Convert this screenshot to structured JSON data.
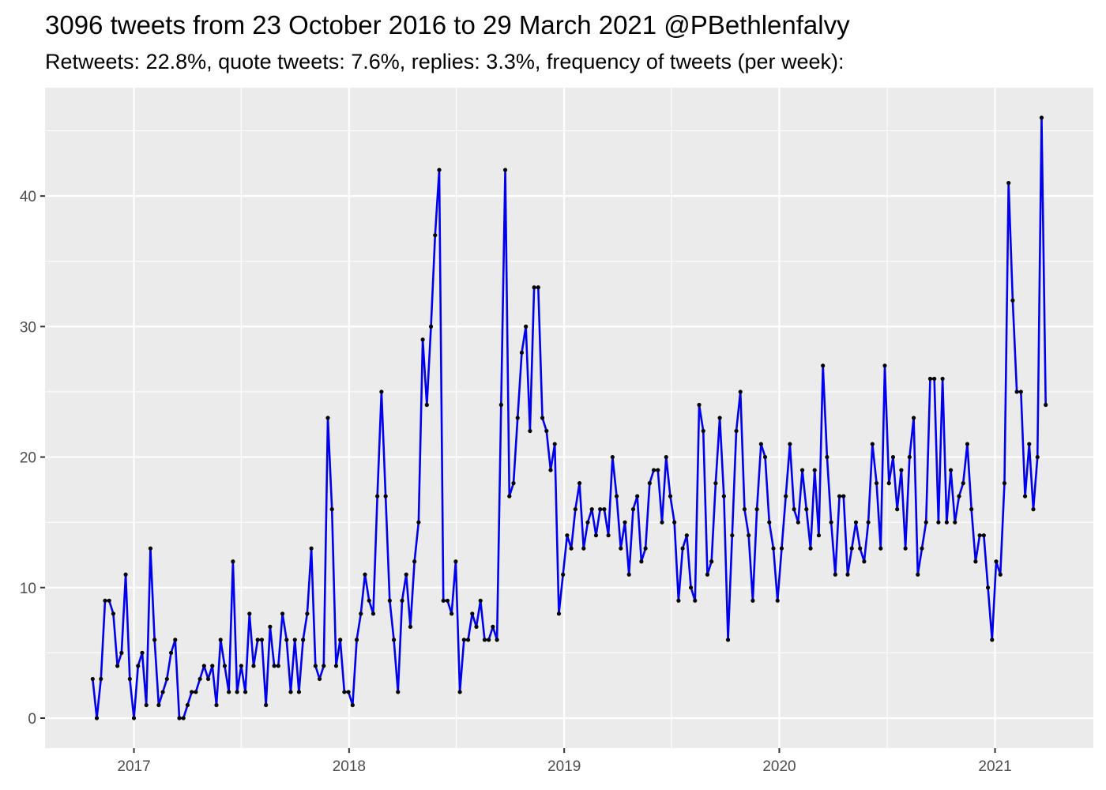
{
  "title": "3096 tweets from 23 October 2016 to 29 March 2021 @PBethlenfalvy",
  "subtitle": "Retweets: 22.8%, quote tweets: 7.6%, replies: 3.3%, frequency of tweets (per week):",
  "chart_data": {
    "type": "line",
    "title": "3096 tweets from 23 October 2016 to 29 March 2021 @PBethlenfalvy",
    "subtitle": "Retweets: 22.8%, quote tweets: 7.6%, replies: 3.3%, frequency of tweets (per week):",
    "xlabel": "",
    "ylabel": "",
    "x_start": "2016-10-23",
    "x_end": "2021-03-29",
    "x_interval": "week",
    "x_ticks": [
      "2017",
      "2018",
      "2019",
      "2020",
      "2021"
    ],
    "y_ticks": [
      0,
      10,
      20,
      30,
      40
    ],
    "ylim": [
      -2.3,
      48.3
    ],
    "grid": true,
    "legend": "none",
    "line_color": "#0000ee",
    "point_color": "#000000",
    "panel_background": "#ebebeb",
    "gridline_color": "#ffffff",
    "series": [
      {
        "values": [
          3,
          0,
          3,
          9,
          9,
          8,
          4,
          5,
          11,
          3,
          0,
          4,
          5,
          1,
          13,
          6,
          1,
          2,
          3,
          5,
          6,
          0,
          0,
          1,
          2,
          2,
          3,
          4,
          3,
          4,
          1,
          6,
          4,
          2,
          12,
          2,
          4,
          2,
          8,
          4,
          6,
          6,
          1,
          7,
          4,
          4,
          8,
          6,
          2,
          6,
          2,
          6,
          8,
          13,
          4,
          3,
          4,
          23,
          16,
          4,
          6,
          2,
          2,
          1,
          6,
          8,
          11,
          9,
          8,
          17,
          25,
          17,
          9,
          6,
          2,
          9,
          11,
          7,
          12,
          15,
          29,
          24,
          30,
          37,
          42,
          9,
          9,
          8,
          12,
          2,
          6,
          6,
          8,
          7,
          9,
          6,
          6,
          7,
          6,
          24,
          42,
          17,
          18,
          23,
          28,
          30,
          22,
          33,
          33,
          23,
          22,
          19,
          21,
          8,
          11,
          14,
          13,
          16,
          18,
          13,
          15,
          16,
          14,
          16,
          16,
          14,
          20,
          17,
          13,
          15,
          11,
          16,
          17,
          12,
          13,
          18,
          19,
          19,
          15,
          20,
          17,
          15,
          9,
          13,
          14,
          10,
          9,
          24,
          22,
          11,
          12,
          18,
          23,
          17,
          6,
          14,
          22,
          25,
          16,
          14,
          9,
          16,
          21,
          20,
          15,
          13,
          9,
          13,
          17,
          21,
          16,
          15,
          19,
          16,
          13,
          19,
          14,
          27,
          20,
          15,
          11,
          17,
          17,
          11,
          13,
          15,
          13,
          12,
          15,
          21,
          18,
          13,
          27,
          18,
          20,
          16,
          19,
          13,
          20,
          23,
          11,
          13,
          15,
          26,
          26,
          15,
          26,
          15,
          19,
          15,
          17,
          18,
          21,
          16,
          12,
          14,
          14,
          10,
          6,
          12,
          11,
          18,
          41,
          32,
          25,
          25,
          17,
          21,
          16,
          20,
          46,
          24
        ]
      }
    ]
  }
}
